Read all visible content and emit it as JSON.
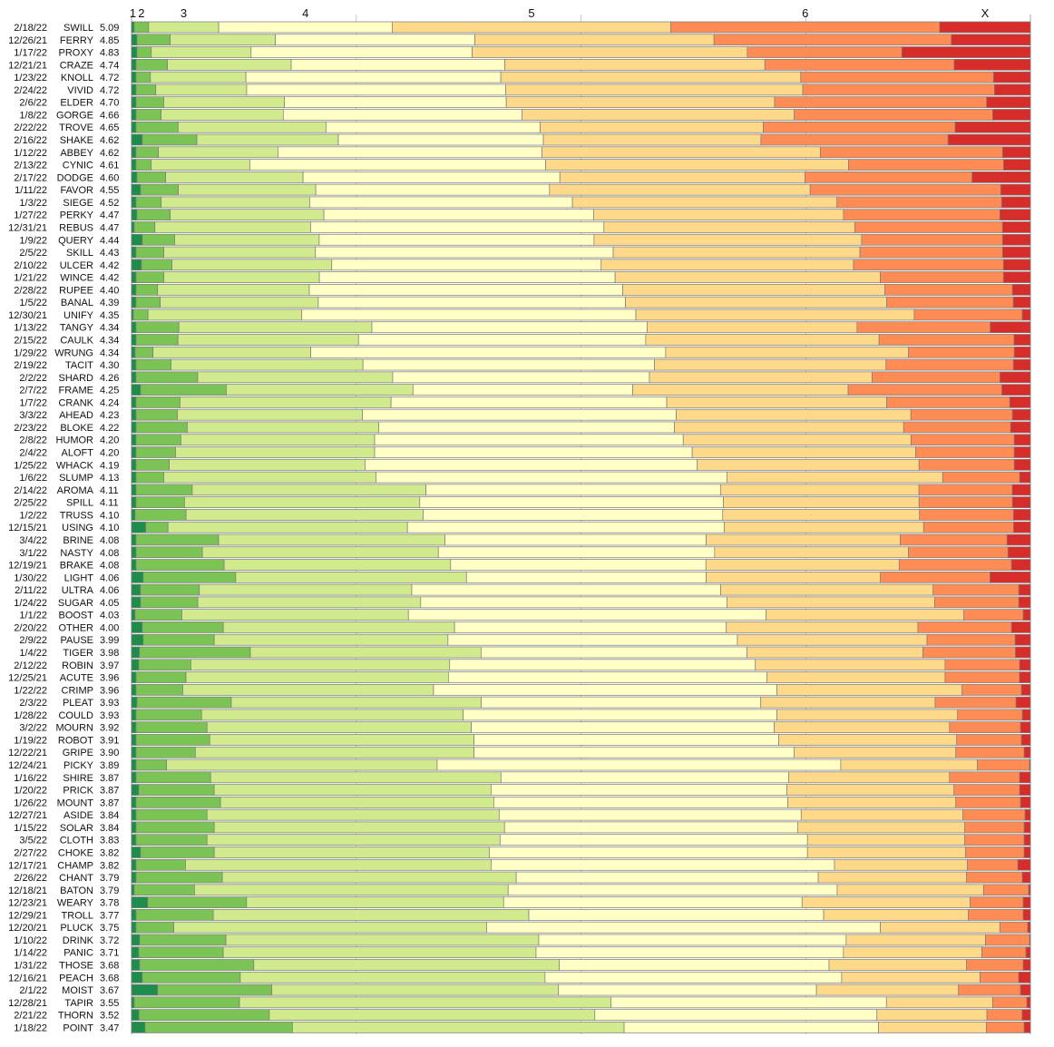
{
  "chart_data": {
    "type": "bar",
    "stacked": "100%",
    "orientation": "horizontal",
    "title": "",
    "xlabel": "",
    "ylabel": "",
    "grid": true,
    "legend": "none",
    "top_labels": [
      "1",
      "2",
      "3",
      "4",
      "5",
      "6",
      "X"
    ],
    "series_colors": [
      "#1e8c4a",
      "#7cc356",
      "#d2ea8e",
      "#ffffc6",
      "#ffd98a",
      "#ff8c55",
      "#d72d2a"
    ],
    "rows": [
      {
        "date": "2/18/22",
        "word": "SWILL",
        "avg": "5.09",
        "dist": [
          0.3,
          1.6,
          7.8,
          19.3,
          31.0,
          29.9,
          10.1
        ]
      },
      {
        "date": "12/26/21",
        "word": "FERRY",
        "avg": "4.85",
        "dist": [
          0.6,
          3.7,
          11.7,
          22.2,
          26.6,
          26.4,
          8.8
        ]
      },
      {
        "date": "1/17/22",
        "word": "PROXY",
        "avg": "4.83",
        "dist": [
          0.6,
          1.6,
          11.1,
          24.6,
          30.6,
          17.2,
          14.3
        ]
      },
      {
        "date": "12/21/21",
        "word": "CRAZE",
        "avg": "4.74",
        "dist": [
          0.5,
          3.5,
          13.8,
          23.8,
          29.0,
          21.1,
          8.5
        ]
      },
      {
        "date": "1/23/22",
        "word": "KNOLL",
        "avg": "4.72",
        "dist": [
          0.5,
          1.6,
          10.6,
          28.3,
          33.3,
          21.4,
          4.1
        ]
      },
      {
        "date": "2/24/22",
        "word": "VIVID",
        "avg": "4.72",
        "dist": [
          0.5,
          2.2,
          10.1,
          28.8,
          33.0,
          21.3,
          4.0
        ]
      },
      {
        "date": "2/6/22",
        "word": "ELDER",
        "avg": "4.70",
        "dist": [
          0.5,
          3.1,
          13.5,
          24.8,
          30.0,
          23.7,
          4.9
        ]
      },
      {
        "date": "1/8/22",
        "word": "GORGE",
        "avg": "4.66",
        "dist": [
          0.5,
          2.8,
          13.6,
          26.6,
          30.3,
          22.1,
          4.2
        ]
      },
      {
        "date": "2/22/22",
        "word": "TROVE",
        "avg": "4.65",
        "dist": [
          0.5,
          4.7,
          16.5,
          23.9,
          24.9,
          21.4,
          8.4
        ]
      },
      {
        "date": "2/16/22",
        "word": "SHAKE",
        "avg": "4.62",
        "dist": [
          1.2,
          6.1,
          15.8,
          22.9,
          24.3,
          20.9,
          9.2
        ]
      },
      {
        "date": "1/12/22",
        "word": "ABBEY",
        "avg": "4.62",
        "dist": [
          0.5,
          2.5,
          13.3,
          29.4,
          31.0,
          20.3,
          3.1
        ]
      },
      {
        "date": "2/13/22",
        "word": "CYNIC",
        "avg": "4.61",
        "dist": [
          0.5,
          1.7,
          11.0,
          33.0,
          33.8,
          17.3,
          3.0
        ]
      },
      {
        "date": "2/17/22",
        "word": "DODGE",
        "avg": "4.60",
        "dist": [
          0.6,
          3.2,
          15.3,
          28.6,
          27.3,
          18.6,
          6.5
        ]
      },
      {
        "date": "1/11/22",
        "word": "FAVOR",
        "avg": "4.55",
        "dist": [
          1.0,
          4.2,
          15.3,
          26.0,
          29.0,
          21.2,
          3.3
        ]
      },
      {
        "date": "1/3/22",
        "word": "SIEGE",
        "avg": "4.52",
        "dist": [
          0.5,
          2.8,
          16.5,
          29.2,
          29.4,
          18.3,
          3.2
        ]
      },
      {
        "date": "1/27/22",
        "word": "PERKY",
        "avg": "4.47",
        "dist": [
          0.6,
          3.7,
          17.1,
          30.0,
          27.8,
          17.4,
          3.4
        ]
      },
      {
        "date": "12/31/21",
        "word": "REBUS",
        "avg": "4.47",
        "dist": [
          0.3,
          2.3,
          17.3,
          32.6,
          27.9,
          16.4,
          3.1
        ]
      },
      {
        "date": "1/9/22",
        "word": "QUERY",
        "avg": "4.44",
        "dist": [
          1.2,
          3.6,
          16.1,
          30.6,
          29.8,
          15.7,
          3.1
        ]
      },
      {
        "date": "2/5/22",
        "word": "SKILL",
        "avg": "4.43",
        "dist": [
          0.5,
          3.1,
          16.9,
          33.2,
          27.5,
          15.9,
          3.1
        ]
      },
      {
        "date": "2/10/22",
        "word": "ULCER",
        "avg": "4.42",
        "dist": [
          1.1,
          3.4,
          17.8,
          30.0,
          28.1,
          16.7,
          3.0
        ]
      },
      {
        "date": "1/21/22",
        "word": "WINCE",
        "avg": "4.42",
        "dist": [
          0.5,
          3.1,
          17.3,
          32.9,
          29.5,
          13.7,
          3.0
        ]
      },
      {
        "date": "2/28/22",
        "word": "RUPEE",
        "avg": "4.40",
        "dist": [
          0.5,
          2.4,
          16.9,
          34.9,
          29.2,
          14.2,
          2.0
        ]
      },
      {
        "date": "1/5/22",
        "word": "BANAL",
        "avg": "4.39",
        "dist": [
          0.5,
          2.7,
          17.6,
          34.2,
          29.1,
          14.1,
          1.9
        ]
      },
      {
        "date": "12/30/21",
        "word": "UNIFY",
        "avg": "4.35",
        "dist": [
          0.2,
          1.6,
          16.8,
          36.5,
          30.4,
          11.8,
          0.9
        ]
      },
      {
        "date": "1/13/22",
        "word": "TANGY",
        "avg": "4.34",
        "dist": [
          0.5,
          4.8,
          21.6,
          30.8,
          23.5,
          14.9,
          4.5
        ]
      },
      {
        "date": "2/15/22",
        "word": "CAULK",
        "avg": "4.34",
        "dist": [
          0.5,
          4.6,
          19.8,
          31.5,
          25.6,
          14.8,
          1.8
        ]
      },
      {
        "date": "1/29/22",
        "word": "WRUNG",
        "avg": "4.34",
        "dist": [
          0.4,
          2.0,
          17.6,
          39.6,
          27.1,
          11.8,
          1.8
        ]
      },
      {
        "date": "2/19/22",
        "word": "TACIT",
        "avg": "4.30",
        "dist": [
          0.5,
          3.9,
          21.4,
          32.5,
          25.8,
          14.2,
          1.9
        ]
      },
      {
        "date": "2/2/22",
        "word": "SHARD",
        "avg": "4.26",
        "dist": [
          0.5,
          6.9,
          21.8,
          28.7,
          24.9,
          14.3,
          3.4
        ]
      },
      {
        "date": "2/7/22",
        "word": "FRAME",
        "avg": "4.25",
        "dist": [
          1.0,
          9.6,
          20.9,
          24.6,
          24.1,
          17.2,
          3.2
        ]
      },
      {
        "date": "1/7/22",
        "word": "CRANK",
        "avg": "4.24",
        "dist": [
          0.5,
          4.9,
          23.5,
          30.7,
          24.5,
          13.7,
          2.3
        ]
      },
      {
        "date": "3/3/22",
        "word": "AHEAD",
        "avg": "4.23",
        "dist": [
          0.5,
          4.6,
          20.6,
          34.9,
          26.1,
          11.3,
          2.0
        ]
      },
      {
        "date": "2/23/22",
        "word": "BLOKE",
        "avg": "4.22",
        "dist": [
          0.5,
          5.7,
          21.3,
          32.9,
          25.5,
          11.9,
          2.2
        ]
      },
      {
        "date": "2/8/22",
        "word": "HUMOR",
        "avg": "4.20",
        "dist": [
          0.5,
          5.0,
          21.6,
          34.4,
          25.4,
          11.5,
          1.8
        ]
      },
      {
        "date": "2/4/22",
        "word": "ALOFT",
        "avg": "4.20",
        "dist": [
          0.5,
          4.4,
          22.2,
          35.4,
          24.9,
          11.0,
          1.8
        ]
      },
      {
        "date": "1/25/22",
        "word": "WHACK",
        "avg": "4.19",
        "dist": [
          0.5,
          3.7,
          21.8,
          37.0,
          24.7,
          10.6,
          1.8
        ]
      },
      {
        "date": "1/6/22",
        "word": "SLUMP",
        "avg": "4.13",
        "dist": [
          0.5,
          3.1,
          23.7,
          39.2,
          24.1,
          8.6,
          1.2
        ]
      },
      {
        "date": "2/14/22",
        "word": "AROMA",
        "avg": "4.11",
        "dist": [
          0.5,
          6.2,
          25.8,
          32.5,
          21.9,
          10.3,
          2.0
        ]
      },
      {
        "date": "2/25/22",
        "word": "SPILL",
        "avg": "4.11",
        "dist": [
          0.5,
          5.4,
          26.2,
          33.8,
          21.8,
          10.4,
          2.0
        ]
      },
      {
        "date": "1/2/22",
        "word": "TRUSS",
        "avg": "4.10",
        "dist": [
          0.4,
          5.7,
          26.5,
          33.5,
          22.0,
          10.5,
          1.9
        ]
      },
      {
        "date": "12/15/21",
        "word": "USING",
        "avg": "4.10",
        "dist": [
          1.6,
          2.5,
          26.9,
          35.6,
          22.4,
          10.1,
          1.9
        ]
      },
      {
        "date": "3/4/22",
        "word": "BRINE",
        "avg": "4.08",
        "dist": [
          0.5,
          9.2,
          25.2,
          29.1,
          21.6,
          11.9,
          2.6
        ]
      },
      {
        "date": "3/1/22",
        "word": "NASTY",
        "avg": "4.08",
        "dist": [
          0.5,
          7.4,
          26.3,
          30.8,
          21.6,
          11.1,
          2.5
        ]
      },
      {
        "date": "12/19/21",
        "word": "BRAKE",
        "avg": "4.08",
        "dist": [
          0.5,
          9.8,
          25.2,
          28.4,
          21.5,
          12.5,
          2.1
        ]
      },
      {
        "date": "1/30/22",
        "word": "LIGHT",
        "avg": "4.06",
        "dist": [
          1.3,
          10.3,
          25.7,
          26.7,
          19.4,
          12.2,
          4.5
        ]
      },
      {
        "date": "2/11/22",
        "word": "ULTRA",
        "avg": "4.06",
        "dist": [
          1.0,
          6.6,
          23.8,
          34.6,
          23.8,
          9.6,
          1.3
        ]
      },
      {
        "date": "1/24/22",
        "word": "SUGAR",
        "avg": "4.05",
        "dist": [
          1.0,
          6.4,
          24.9,
          34.2,
          23.2,
          9.4,
          1.3
        ]
      },
      {
        "date": "1/1/22",
        "word": "BOOST",
        "avg": "4.03",
        "dist": [
          0.4,
          5.2,
          25.2,
          39.8,
          22.0,
          6.6,
          0.8
        ]
      },
      {
        "date": "2/20/22",
        "word": "OTHER",
        "avg": "4.00",
        "dist": [
          1.2,
          9.0,
          25.7,
          30.2,
          21.3,
          10.4,
          2.1
        ]
      },
      {
        "date": "2/9/22",
        "word": "PAUSE",
        "avg": "3.99",
        "dist": [
          1.3,
          7.9,
          26.0,
          32.2,
          21.1,
          9.8,
          1.7
        ]
      },
      {
        "date": "1/4/22",
        "word": "TIGER",
        "avg": "3.98",
        "dist": [
          0.9,
          12.6,
          26.2,
          30.2,
          20.0,
          10.5,
          1.7
        ]
      },
      {
        "date": "2/12/22",
        "word": "ROBIN",
        "avg": "3.97",
        "dist": [
          0.8,
          5.8,
          28.8,
          34.0,
          21.1,
          8.3,
          1.2
        ]
      },
      {
        "date": "12/25/21",
        "word": "ACUTE",
        "avg": "3.96",
        "dist": [
          0.5,
          5.5,
          28.9,
          35.1,
          19.6,
          8.2,
          1.2
        ]
      },
      {
        "date": "1/22/22",
        "word": "CRIMP",
        "avg": "3.96",
        "dist": [
          0.5,
          5.2,
          27.9,
          38.2,
          20.6,
          6.6,
          1.0
        ]
      },
      {
        "date": "2/3/22",
        "word": "PLEAT",
        "avg": "3.93",
        "dist": [
          0.6,
          10.5,
          27.8,
          31.1,
          19.4,
          9.0,
          1.6
        ]
      },
      {
        "date": "1/28/22",
        "word": "COULD",
        "avg": "3.93",
        "dist": [
          0.5,
          7.3,
          29.1,
          34.9,
          20.1,
          7.2,
          0.9
        ]
      },
      {
        "date": "3/2/22",
        "word": "MOURN",
        "avg": "3.92",
        "dist": [
          0.5,
          7.9,
          29.4,
          33.7,
          19.5,
          7.9,
          1.1
        ]
      },
      {
        "date": "1/19/22",
        "word": "ROBOT",
        "avg": "3.91",
        "dist": [
          0.5,
          8.2,
          29.4,
          33.9,
          19.8,
          7.2,
          1.0
        ]
      },
      {
        "date": "12/22/21",
        "word": "GRIPE",
        "avg": "3.90",
        "dist": [
          0.5,
          6.6,
          31.0,
          35.6,
          18.0,
          7.6,
          0.7
        ]
      },
      {
        "date": "12/24/21",
        "word": "PICKY",
        "avg": "3.89",
        "dist": [
          0.5,
          3.4,
          30.1,
          44.9,
          15.2,
          5.8,
          0.1
        ]
      },
      {
        "date": "1/16/22",
        "word": "SHIRE",
        "avg": "3.87",
        "dist": [
          0.5,
          8.3,
          32.3,
          32.0,
          17.9,
          7.8,
          1.2
        ]
      },
      {
        "date": "1/20/22",
        "word": "PRICK",
        "avg": "3.87",
        "dist": [
          0.8,
          8.4,
          30.8,
          32.9,
          18.6,
          7.3,
          1.2
        ]
      },
      {
        "date": "1/26/22",
        "word": "MOUNT",
        "avg": "3.87",
        "dist": [
          0.5,
          9.4,
          30.4,
          32.7,
          18.7,
          7.2,
          1.1
        ]
      },
      {
        "date": "12/27/21",
        "word": "ASIDE",
        "avg": "3.84",
        "dist": [
          0.5,
          7.9,
          32.5,
          33.6,
          18.0,
          6.9,
          0.6
        ]
      },
      {
        "date": "1/15/22",
        "word": "SOLAR",
        "avg": "3.84",
        "dist": [
          0.5,
          8.7,
          32.3,
          32.6,
          18.6,
          6.6,
          0.7
        ]
      },
      {
        "date": "3/5/22",
        "word": "CLOTH",
        "avg": "3.83",
        "dist": [
          0.5,
          7.9,
          32.6,
          34.2,
          17.5,
          6.6,
          0.7
        ]
      },
      {
        "date": "2/27/22",
        "word": "CHOKE",
        "avg": "3.82",
        "dist": [
          1.0,
          8.2,
          30.6,
          35.4,
          17.6,
          6.5,
          0.7
        ]
      },
      {
        "date": "12/17/21",
        "word": "CHAMP",
        "avg": "3.82",
        "dist": [
          0.5,
          5.5,
          34.0,
          38.2,
          14.8,
          5.6,
          1.4
        ]
      },
      {
        "date": "2/26/22",
        "word": "CHANT",
        "avg": "3.79",
        "dist": [
          0.5,
          9.6,
          32.7,
          33.6,
          16.5,
          6.2,
          0.9
        ]
      },
      {
        "date": "12/18/21",
        "word": "BATON",
        "avg": "3.79",
        "dist": [
          0.3,
          6.7,
          34.9,
          36.6,
          16.3,
          5.0,
          0.2
        ]
      },
      {
        "date": "12/23/21",
        "word": "WEARY",
        "avg": "3.78",
        "dist": [
          1.8,
          11.0,
          28.6,
          33.2,
          18.7,
          5.9,
          0.8
        ]
      },
      {
        "date": "12/29/21",
        "word": "TROLL",
        "avg": "3.77",
        "dist": [
          0.5,
          8.6,
          35.1,
          32.8,
          16.1,
          6.1,
          0.8
        ]
      },
      {
        "date": "12/20/21",
        "word": "PLUCK",
        "avg": "3.75",
        "dist": [
          0.5,
          4.2,
          34.8,
          43.8,
          13.3,
          3.1,
          0.3
        ]
      },
      {
        "date": "1/10/22",
        "word": "DRINK",
        "avg": "3.72",
        "dist": [
          0.9,
          9.6,
          34.8,
          34.2,
          15.5,
          4.9,
          0.1
        ]
      },
      {
        "date": "1/14/22",
        "word": "PANIC",
        "avg": "3.71",
        "dist": [
          0.8,
          9.4,
          34.8,
          34.2,
          15.4,
          4.9,
          0.5
        ]
      },
      {
        "date": "1/31/22",
        "word": "THOSE",
        "avg": "3.68",
        "dist": [
          0.9,
          12.7,
          34.0,
          30.0,
          15.3,
          6.3,
          0.8
        ]
      },
      {
        "date": "12/16/21",
        "word": "PEACH",
        "avg": "3.68",
        "dist": [
          1.2,
          10.9,
          33.9,
          33.0,
          15.4,
          4.3,
          1.3
        ]
      },
      {
        "date": "2/1/22",
        "word": "MOIST",
        "avg": "3.67",
        "dist": [
          2.9,
          12.7,
          31.9,
          28.7,
          15.8,
          6.9,
          1.1
        ]
      },
      {
        "date": "12/28/21",
        "word": "TAPIR",
        "avg": "3.55",
        "dist": [
          0.3,
          11.7,
          41.3,
          30.6,
          11.8,
          3.8,
          0.4
        ]
      },
      {
        "date": "2/21/22",
        "word": "THORN",
        "avg": "3.52",
        "dist": [
          0.8,
          14.1,
          35.2,
          30.5,
          11.9,
          3.8,
          0.9
        ]
      },
      {
        "date": "1/18/22",
        "word": "POINT",
        "avg": "3.47",
        "dist": [
          1.5,
          16.4,
          36.9,
          28.3,
          12.0,
          4.2,
          0.7
        ]
      }
    ]
  }
}
